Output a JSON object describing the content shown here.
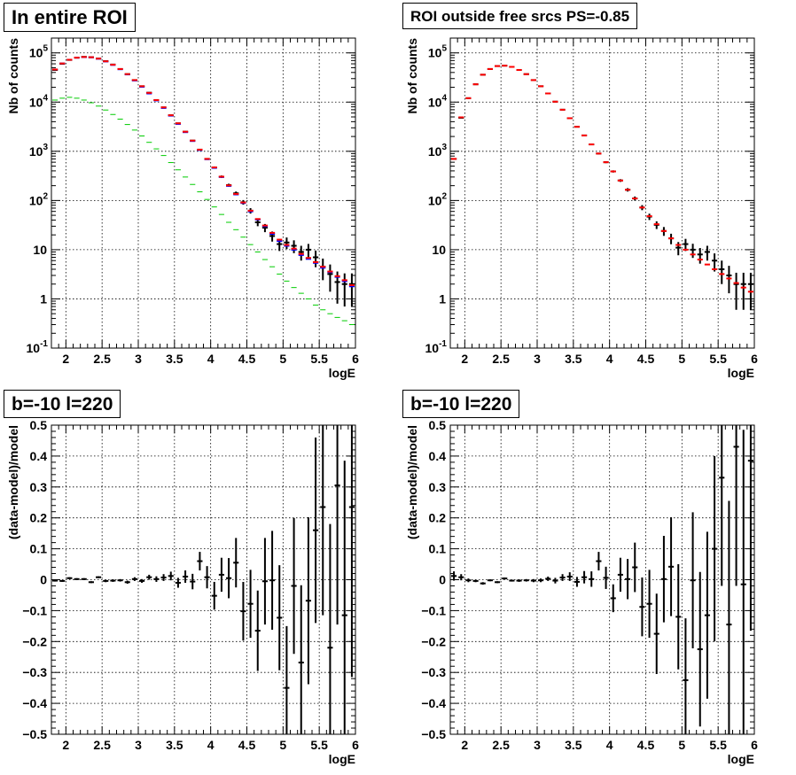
{
  "titles": {
    "p1": "In entire ROI",
    "p2": "ROI outside free srcs PS=-0.85",
    "p3": "b=-10 l=220",
    "p4": "b=-10 l=220"
  },
  "colors": {
    "data": "#000000",
    "model_total": "#ff0000",
    "model_blue": "#0000ff",
    "model_green": "#00cc00",
    "grid": "#000000",
    "background": "#ffffff"
  },
  "chart_data": [
    {
      "type": "scatter",
      "title": "In entire ROI",
      "xlabel": "logE",
      "ylabel": "Nb of counts",
      "log_y": true,
      "xlim": [
        1.8,
        6.0
      ],
      "ylim": [
        0.1,
        200000
      ],
      "grid": true,
      "x_ticks": [
        2,
        2.5,
        3,
        3.5,
        4,
        4.5,
        5,
        5.5,
        6
      ],
      "x_tick_labels": [
        "2",
        "2.5",
        "3",
        "3.5",
        "4",
        "4.5",
        "5",
        "5.5",
        "6"
      ],
      "y_ticks": [
        0.1,
        1,
        10,
        100,
        1000,
        10000,
        100000
      ],
      "y_tick_labels": [
        "10^-1",
        "1",
        "10",
        "10^2",
        "10^3",
        "10^4",
        "10^5"
      ],
      "x": [
        1.85,
        1.95,
        2.05,
        2.15,
        2.25,
        2.35,
        2.45,
        2.55,
        2.65,
        2.75,
        2.85,
        2.95,
        3.05,
        3.15,
        3.25,
        3.35,
        3.45,
        3.55,
        3.65,
        3.75,
        3.85,
        3.95,
        4.05,
        4.15,
        4.25,
        4.35,
        4.45,
        4.55,
        4.65,
        4.75,
        4.85,
        4.95,
        5.05,
        5.15,
        5.25,
        5.35,
        5.45,
        5.55,
        5.65,
        5.75,
        5.85,
        5.95
      ],
      "series": [
        {
          "name": "",
          "color": "#000000",
          "kind": "data",
          "values": [
            45000,
            60000,
            72000,
            80000,
            83000,
            82000,
            77000,
            68000,
            58000,
            47000,
            37000,
            28000,
            21000,
            15500,
            11000,
            7800,
            5400,
            3700,
            2500,
            1650,
            1080,
            700,
            470,
            305,
            205,
            140,
            92,
            62,
            36,
            28,
            19,
            13,
            14,
            12,
            9,
            10,
            7,
            4.5,
            3.2,
            2.2,
            2,
            2
          ],
          "err_low": [
            44700,
            59700,
            71700,
            79700,
            82700,
            81700,
            76700,
            67700,
            57700,
            46700,
            36800,
            27830,
            20850,
            15380,
            10900,
            7710,
            5330,
            3640,
            2450,
            1610,
            1050,
            675,
            450,
            288,
            191,
            128,
            82.4,
            54.1,
            30,
            22.7,
            14.6,
            9.4,
            10.3,
            8.5,
            6,
            6.9,
            4.4,
            2.4,
            1.4,
            0.8,
            0.7,
            0.7
          ],
          "err_high": [
            45300,
            60300,
            72300,
            80300,
            83300,
            82300,
            77300,
            68300,
            58300,
            47300,
            37200,
            28170,
            21150,
            15620,
            11100,
            7890,
            5470,
            3760,
            2550,
            1690,
            1110,
            726,
            492,
            322,
            219,
            152,
            102,
            70,
            42,
            33.3,
            23.4,
            16.6,
            17.7,
            15.5,
            12,
            13.1,
            9.6,
            6.6,
            5,
            3.6,
            3.3,
            3.3
          ]
        },
        {
          "name": "",
          "color": "#0000ff",
          "kind": "model",
          "values": [
            46000,
            61000,
            72500,
            80000,
            82000,
            81000,
            76000,
            67000,
            57000,
            46500,
            36500,
            27500,
            20500,
            15000,
            10800,
            7600,
            5300,
            3600,
            2450,
            1620,
            1060,
            690,
            460,
            300,
            198,
            133,
            89,
            60,
            41,
            30,
            21,
            15,
            12,
            10,
            7.8,
            6.5,
            5.4,
            4.3,
            3.5,
            2.8,
            2.3,
            1.8
          ]
        },
        {
          "name": "",
          "color": "#00cc00",
          "kind": "model",
          "values": [
            11000,
            12000,
            12500,
            12000,
            11000,
            9700,
            8300,
            6900,
            5600,
            4500,
            3500,
            2700,
            2050,
            1520,
            1120,
            820,
            590,
            420,
            300,
            212,
            150,
            105,
            74,
            52,
            36,
            25.5,
            18,
            12.7,
            9,
            6.3,
            4.5,
            3.2,
            2.3,
            1.7,
            1.3,
            1,
            0.75,
            0.6,
            0.5,
            0.42,
            0.36,
            0.3
          ]
        },
        {
          "name": "",
          "color": "#ff0000",
          "kind": "model",
          "values": [
            46000,
            61000,
            72500,
            80000,
            82500,
            81500,
            76500,
            67500,
            57500,
            47000,
            37000,
            28000,
            21000,
            15400,
            11000,
            7800,
            5400,
            3700,
            2500,
            1650,
            1080,
            700,
            470,
            305,
            203,
            136,
            91,
            62,
            42,
            31,
            22,
            16,
            12.5,
            10.5,
            8.2,
            6.8,
            5.6,
            4.5,
            3.6,
            2.9,
            2.4,
            1.9
          ]
        }
      ]
    },
    {
      "type": "scatter",
      "title": "ROI outside free srcs PS=-0.85",
      "xlabel": "logE",
      "ylabel": "Nb of counts",
      "log_y": true,
      "xlim": [
        1.8,
        6.0
      ],
      "ylim": [
        0.1,
        200000
      ],
      "grid": true,
      "x_ticks": [
        2,
        2.5,
        3,
        3.5,
        4,
        4.5,
        5,
        5.5,
        6
      ],
      "x_tick_labels": [
        "2",
        "2.5",
        "3",
        "3.5",
        "4",
        "4.5",
        "5",
        "5.5",
        "6"
      ],
      "y_ticks": [
        0.1,
        1,
        10,
        100,
        1000,
        10000,
        100000
      ],
      "y_tick_labels": [
        "10^-1",
        "1",
        "10",
        "10^2",
        "10^3",
        "10^4",
        "10^5"
      ],
      "x": [
        1.85,
        1.95,
        2.05,
        2.15,
        2.25,
        2.35,
        2.45,
        2.55,
        2.65,
        2.75,
        2.85,
        2.95,
        3.05,
        3.15,
        3.25,
        3.35,
        3.45,
        3.55,
        3.65,
        3.75,
        3.85,
        3.95,
        4.05,
        4.15,
        4.25,
        4.35,
        4.45,
        4.55,
        4.65,
        4.75,
        4.85,
        4.95,
        5.05,
        5.15,
        5.25,
        5.35,
        5.45,
        5.55,
        5.65,
        5.75,
        5.85,
        5.95
      ],
      "series": [
        {
          "name": "",
          "color": "#000000",
          "kind": "data",
          "values": [
            700,
            4800,
            12000,
            23000,
            36000,
            47000,
            54000,
            55000,
            52000,
            45000,
            37000,
            28000,
            21000,
            15000,
            10200,
            7000,
            4700,
            3150,
            2100,
            1380,
            900,
            600,
            390,
            255,
            165,
            110,
            72,
            47,
            32,
            24,
            17,
            11,
            13,
            10,
            8,
            9,
            6,
            4,
            3,
            2,
            2,
            2
          ],
          "err_low": [
            674,
            4731,
            11890,
            22850,
            35810,
            46780,
            53770,
            54770,
            51770,
            44790,
            36810,
            27830,
            20850,
            14880,
            10100,
            6916,
            4631,
            3094,
            2054,
            1343,
            870,
            575,
            370,
            239,
            152,
            99.5,
            63.5,
            40.1,
            26.3,
            19.1,
            12.9,
            7.7,
            9.4,
            6.8,
            5.2,
            6,
            3.6,
            2,
            1.3,
            0.6,
            0.6,
            0.6
          ],
          "err_high": [
            726,
            4869,
            12110,
            23150,
            36190,
            47220,
            54230,
            55230,
            52230,
            45210,
            37190,
            28170,
            21150,
            15120,
            10300,
            7084,
            4769,
            3206,
            2146,
            1417,
            930,
            625,
            410,
            271,
            178,
            120.5,
            80.5,
            53.9,
            37.7,
            28.9,
            21.1,
            14.3,
            16.6,
            13.2,
            10.8,
            12,
            8.4,
            6,
            4.7,
            3.4,
            3.4,
            3.4
          ]
        },
        {
          "name": "",
          "color": "#ff0000",
          "kind": "model",
          "values": [
            700,
            4900,
            12000,
            23000,
            36000,
            47000,
            54000,
            55000,
            52000,
            45000,
            37000,
            28000,
            21000,
            15000,
            10200,
            7000,
            4700,
            3150,
            2100,
            1380,
            900,
            600,
            390,
            255,
            165,
            110,
            72,
            48,
            33,
            24,
            17,
            12.5,
            10,
            8,
            6.3,
            5,
            4,
            3.2,
            2.6,
            2.1,
            1.7,
            1.4
          ]
        }
      ]
    },
    {
      "type": "scatter",
      "title": "b=-10 l=220",
      "xlabel": "logE",
      "ylabel": "(data-model)/model",
      "xlim": [
        1.8,
        6.0
      ],
      "ylim": [
        -0.5,
        0.5
      ],
      "grid": true,
      "x_ticks": [
        2,
        2.5,
        3,
        3.5,
        4,
        4.5,
        5,
        5.5,
        6
      ],
      "x_tick_labels": [
        "2",
        "2.5",
        "3",
        "3.5",
        "4",
        "4.5",
        "5",
        "5.5",
        "6"
      ],
      "y_ticks": [
        -0.5,
        -0.4,
        -0.3,
        -0.2,
        -0.1,
        0,
        0.1,
        0.2,
        0.3,
        0.4,
        0.5
      ],
      "y_tick_labels": [
        "−0.5",
        "−0.4",
        "−0.3",
        "−0.2",
        "−0.1",
        "0",
        "0.1",
        "0.2",
        "0.3",
        "0.4",
        "0.5"
      ],
      "x": [
        1.85,
        1.95,
        2.05,
        2.15,
        2.25,
        2.35,
        2.45,
        2.55,
        2.65,
        2.75,
        2.85,
        2.95,
        3.05,
        3.15,
        3.25,
        3.35,
        3.45,
        3.55,
        3.65,
        3.75,
        3.85,
        3.95,
        4.05,
        4.15,
        4.25,
        4.35,
        4.45,
        4.55,
        4.65,
        4.75,
        4.85,
        4.95,
        5.05,
        5.15,
        5.25,
        5.35,
        5.45,
        5.55,
        5.65,
        5.75,
        5.85,
        5.95
      ],
      "series": [
        {
          "name": "",
          "color": "#000000",
          "kind": "data",
          "values": [
            -0.003,
            -0.004,
            0.005,
            0.002,
            0.002,
            -0.008,
            0.008,
            -0.004,
            -0.003,
            -0.002,
            -0.008,
            0.002,
            -0.004,
            0.008,
            0.002,
            0.007,
            0.012,
            -0.01,
            0.01,
            -0.006,
            0.06,
            0.008,
            -0.052,
            0.016,
            0.005,
            0.055,
            -0.102,
            -0.078,
            -0.165,
            -0.005,
            -0.002,
            -0.123,
            -0.35,
            -0.02,
            -0.268,
            -0.068,
            0.16,
            0.235,
            -0.22,
            0.305,
            -0.115,
            0.235
          ],
          "err": [
            0.003,
            0.003,
            0.003,
            0.003,
            0.003,
            0.003,
            0.003,
            0.004,
            0.004,
            0.004,
            0.005,
            0.006,
            0.006,
            0.008,
            0.009,
            0.011,
            0.014,
            0.016,
            0.02,
            0.025,
            0.03,
            0.036,
            0.045,
            0.055,
            0.065,
            0.08,
            0.095,
            0.11,
            0.13,
            0.14,
            0.16,
            0.17,
            0.2,
            0.22,
            0.25,
            0.27,
            0.3,
            0.35,
            0.4,
            0.45,
            0.5,
            0.55
          ]
        }
      ]
    },
    {
      "type": "scatter",
      "title": "b=-10 l=220",
      "xlabel": "logE",
      "ylabel": "(data-model)/model",
      "xlim": [
        1.8,
        6.0
      ],
      "ylim": [
        -0.5,
        0.5
      ],
      "grid": true,
      "x_ticks": [
        2,
        2.5,
        3,
        3.5,
        4,
        4.5,
        5,
        5.5,
        6
      ],
      "x_tick_labels": [
        "2",
        "2.5",
        "3",
        "3.5",
        "4",
        "4.5",
        "5",
        "5.5",
        "6"
      ],
      "y_ticks": [
        -0.5,
        -0.4,
        -0.3,
        -0.2,
        -0.1,
        0,
        0.1,
        0.2,
        0.3,
        0.4,
        0.5
      ],
      "y_tick_labels": [
        "−0.5",
        "−0.4",
        "−0.3",
        "−0.2",
        "−0.1",
        "0",
        "0.1",
        "0.2",
        "0.3",
        "0.4",
        "0.5"
      ],
      "x": [
        1.85,
        1.95,
        2.05,
        2.15,
        2.25,
        2.35,
        2.45,
        2.55,
        2.65,
        2.75,
        2.85,
        2.95,
        3.05,
        3.15,
        3.25,
        3.35,
        3.45,
        3.55,
        3.65,
        3.75,
        3.85,
        3.95,
        4.05,
        4.15,
        4.25,
        4.35,
        4.45,
        4.55,
        4.65,
        4.75,
        4.85,
        4.95,
        5.05,
        5.15,
        5.25,
        5.35,
        5.45,
        5.55,
        5.65,
        5.75,
        5.85,
        5.95
      ],
      "series": [
        {
          "name": "",
          "color": "#000000",
          "kind": "data",
          "values": [
            0.012,
            0.008,
            -0.002,
            -0.004,
            -0.012,
            -0.002,
            -0.008,
            0.004,
            -0.003,
            -0.003,
            -0.002,
            -0.003,
            -0.002,
            0.003,
            -0.003,
            0.007,
            0.01,
            -0.007,
            0.008,
            0.002,
            0.06,
            0.006,
            -0.06,
            0.016,
            0.002,
            0.04,
            -0.088,
            -0.078,
            -0.175,
            0.002,
            0.042,
            -0.12,
            -0.325,
            -0.002,
            -0.225,
            -0.115,
            0.1,
            0.33,
            -0.145,
            0.43,
            -0.015,
            0.385
          ],
          "err": [
            0.015,
            0.01,
            0.006,
            0.004,
            0.004,
            0.003,
            0.003,
            0.003,
            0.003,
            0.004,
            0.004,
            0.005,
            0.006,
            0.007,
            0.009,
            0.011,
            0.014,
            0.016,
            0.02,
            0.025,
            0.03,
            0.036,
            0.045,
            0.055,
            0.065,
            0.08,
            0.095,
            0.11,
            0.13,
            0.14,
            0.16,
            0.17,
            0.2,
            0.22,
            0.25,
            0.27,
            0.3,
            0.35,
            0.4,
            0.45,
            0.5,
            0.55
          ]
        }
      ]
    }
  ]
}
